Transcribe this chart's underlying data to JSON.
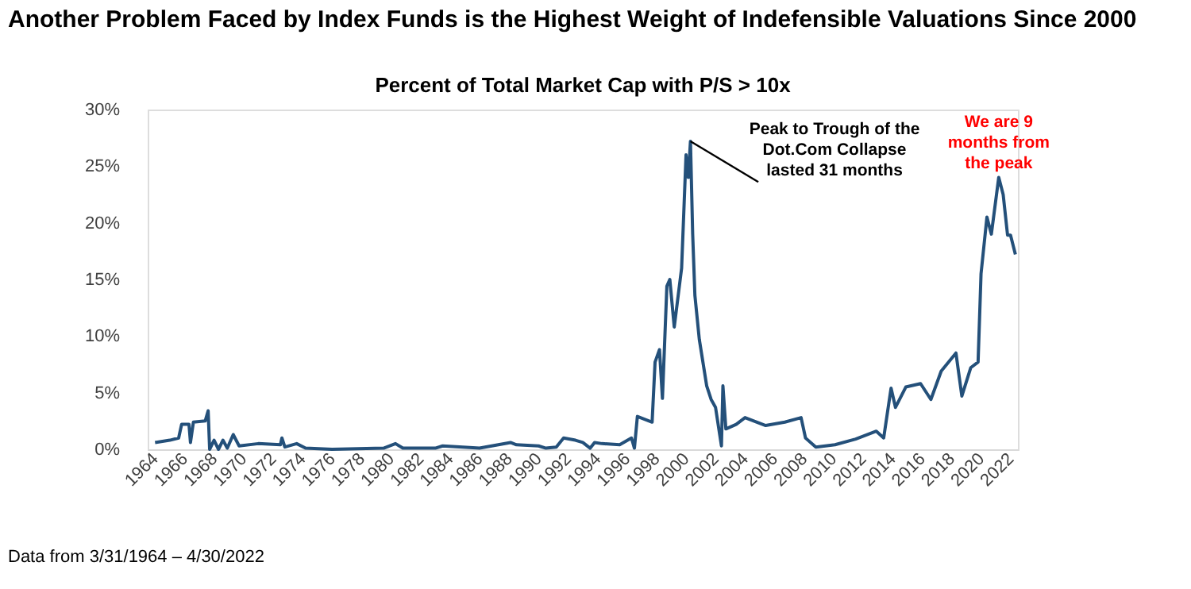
{
  "chart_data": {
    "type": "line",
    "title": "Another Problem Faced by Index Funds is the Highest Weight of Indefensible Valuations Since 2000",
    "subtitle": "Percent of Total Market Cap with P/S > 10x",
    "x": [
      1964.0,
      1965.0,
      1965.6,
      1965.8,
      1966.3,
      1966.4,
      1966.6,
      1967.4,
      1967.6,
      1967.7,
      1968.0,
      1968.3,
      1968.6,
      1968.9,
      1969.3,
      1969.7,
      1971.0,
      1972.5,
      1972.6,
      1972.8,
      1973.6,
      1974.2,
      1976.0,
      1979.5,
      1980.3,
      1980.8,
      1983.0,
      1983.5,
      1986.0,
      1988.1,
      1988.5,
      1990.0,
      1990.5,
      1991.2,
      1991.7,
      1992.5,
      1993.0,
      1993.5,
      1993.8,
      1994.3,
      1995.5,
      1996.3,
      1996.5,
      1996.7,
      1997.7,
      1997.9,
      1998.2,
      1998.4,
      1998.7,
      1998.9,
      1999.2,
      1999.7,
      2000.0,
      2000.15,
      2000.3,
      2000.45,
      2000.6,
      2000.9,
      2001.4,
      2001.7,
      2002.0,
      2002.4,
      2002.5,
      2002.7,
      2003.4,
      2004.0,
      2005.4,
      2006.7,
      2007.8,
      2008.1,
      2008.8,
      2010.1,
      2011.5,
      2012.9,
      2013.4,
      2013.9,
      2014.2,
      2014.9,
      2015.9,
      2016.6,
      2017.3,
      2018.3,
      2018.7,
      2019.3,
      2019.8,
      2020.0,
      2020.4,
      2020.7,
      2021.2,
      2021.5,
      2021.8,
      2022.0,
      2022.33
    ],
    "series": [
      {
        "color": "#24507a",
        "values": [
          0.6,
          0.8,
          1.0,
          2.2,
          2.2,
          0.6,
          2.4,
          2.5,
          3.4,
          0.0,
          0.8,
          0.0,
          0.8,
          0.1,
          1.3,
          0.3,
          0.5,
          0.4,
          1.0,
          0.2,
          0.5,
          0.1,
          0.0,
          0.1,
          0.5,
          0.1,
          0.1,
          0.3,
          0.1,
          0.6,
          0.4,
          0.3,
          0.1,
          0.2,
          1.0,
          0.8,
          0.6,
          0.1,
          0.6,
          0.5,
          0.4,
          1.0,
          0.1,
          2.9,
          2.4,
          7.7,
          8.8,
          4.5,
          14.4,
          15.0,
          10.8,
          16.0,
          26.0,
          24.0,
          27.2,
          19.0,
          13.6,
          9.7,
          5.6,
          4.4,
          3.7,
          0.3,
          5.6,
          1.8,
          2.2,
          2.8,
          2.1,
          2.4,
          2.8,
          1.0,
          0.2,
          0.4,
          0.9,
          1.6,
          1.0,
          5.4,
          3.7,
          5.5,
          5.8,
          4.4,
          6.9,
          8.5,
          4.7,
          7.2,
          7.7,
          15.5,
          20.5,
          19.0,
          24.0,
          22.5,
          18.9,
          18.9,
          17.2
        ]
      }
    ],
    "xlim": [
      1963.5,
      2022.5
    ],
    "xticks": [
      1964,
      1966,
      1968,
      1970,
      1972,
      1974,
      1976,
      1978,
      1980,
      1982,
      1984,
      1986,
      1988,
      1990,
      1992,
      1994,
      1996,
      1998,
      2000,
      2002,
      2004,
      2006,
      2008,
      2010,
      2012,
      2014,
      2016,
      2018,
      2020,
      2022
    ],
    "ylim": [
      0,
      30
    ],
    "yticks": [
      {
        "value": 0,
        "label": "0%"
      },
      {
        "value": 5,
        "label": "5%"
      },
      {
        "value": 10,
        "label": "10%"
      },
      {
        "value": 15,
        "label": "15%"
      },
      {
        "value": 20,
        "label": "20%"
      },
      {
        "value": 25,
        "label": "25%"
      },
      {
        "value": 30,
        "label": "30%"
      }
    ],
    "grid": false,
    "annotations": [
      {
        "text": "Peak to Trough of the\nDot.Com Collapse\nlasted 31 months",
        "x": 2000.3,
        "y": 27.2
      },
      {
        "text": "We are 9\nmonths from\nthe peak",
        "x": 2021.2,
        "y": 24.0
      },
      "Data from 3/31/1964 – 4/30/2022"
    ]
  }
}
